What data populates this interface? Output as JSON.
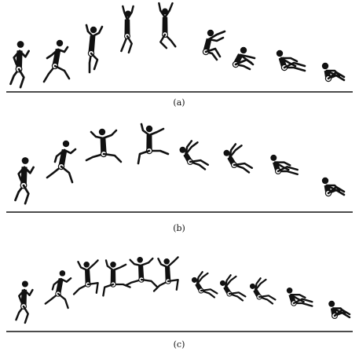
{
  "panels": [
    {
      "id": "a",
      "caption": "(a)",
      "frames": 9
    },
    {
      "id": "b",
      "caption": "(b)",
      "frames": 9
    },
    {
      "id": "c",
      "caption": "(c)",
      "frames": 12
    }
  ],
  "colors": {
    "ink": "#111111",
    "background": "#ffffff"
  }
}
